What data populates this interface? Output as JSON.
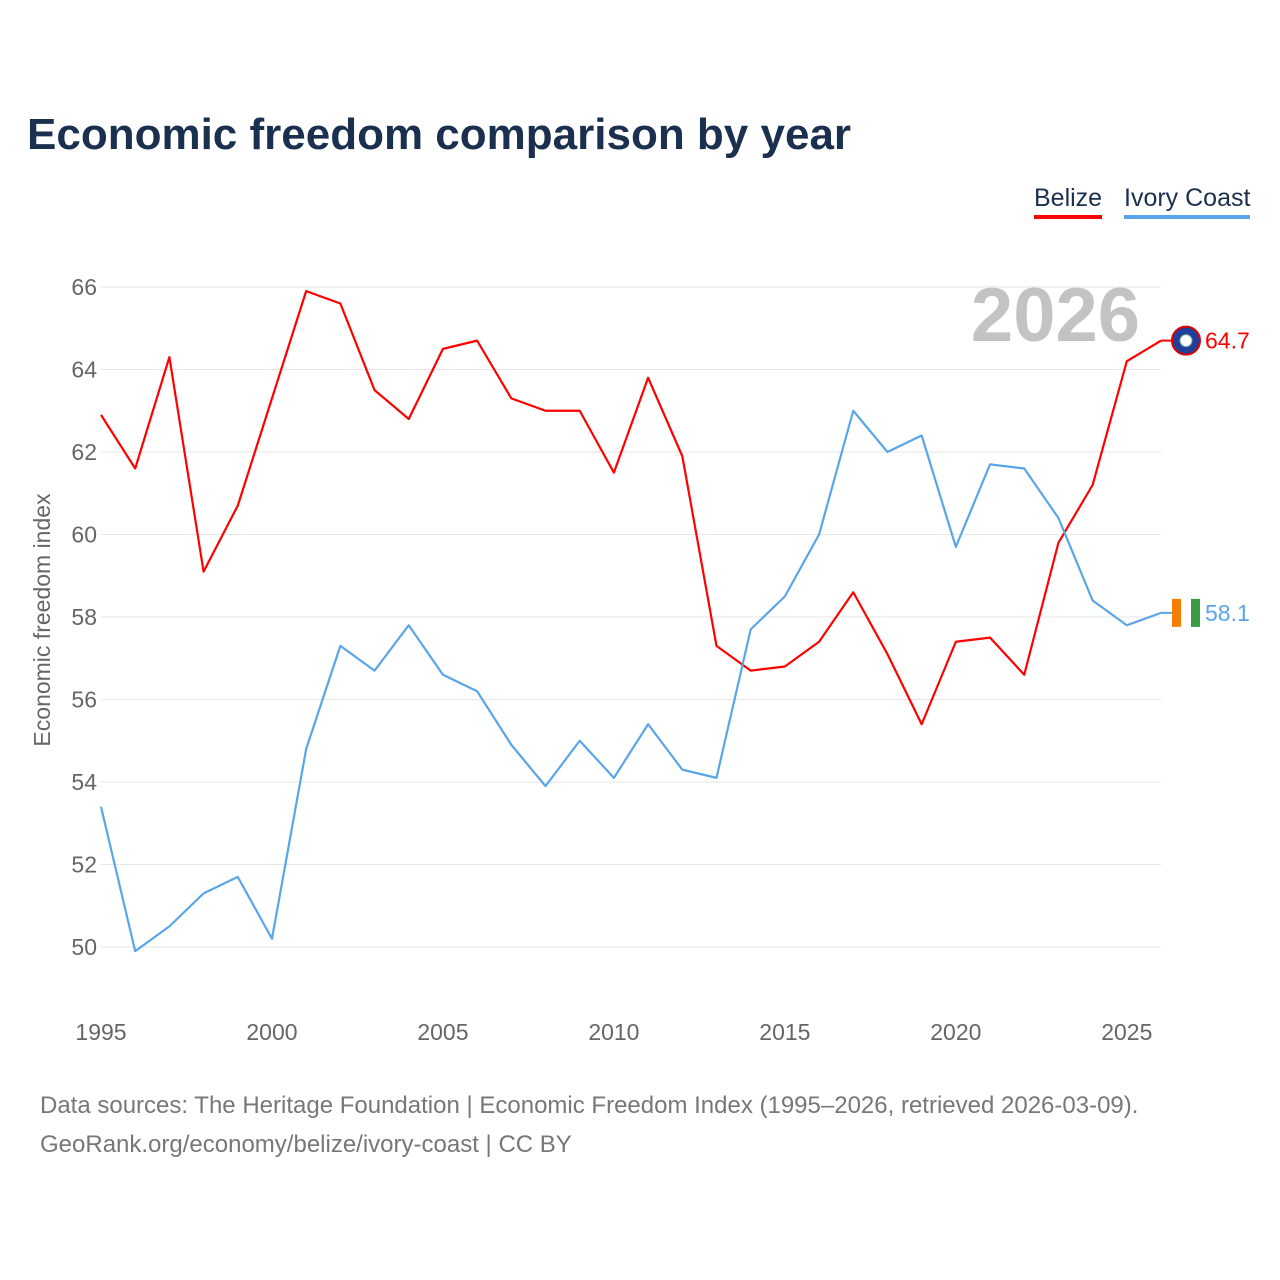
{
  "chart_data": {
    "type": "line",
    "title": "Economic freedom comparison by year",
    "xlabel": "",
    "ylabel": "Economic freedom index",
    "x": [
      1995,
      1996,
      1997,
      1998,
      1999,
      2000,
      2001,
      2002,
      2003,
      2004,
      2005,
      2006,
      2007,
      2008,
      2009,
      2010,
      2011,
      2012,
      2013,
      2014,
      2015,
      2016,
      2017,
      2018,
      2019,
      2020,
      2021,
      2022,
      2023,
      2024,
      2025,
      2026
    ],
    "series": [
      {
        "name": "Belize",
        "color": "#ff0000",
        "end_label": "64.7",
        "values": [
          62.9,
          61.6,
          64.3,
          59.1,
          60.7,
          63.3,
          65.9,
          65.6,
          63.5,
          62.8,
          64.5,
          64.7,
          63.3,
          63.0,
          63.0,
          61.5,
          63.8,
          61.9,
          57.3,
          56.7,
          56.8,
          57.4,
          58.6,
          57.1,
          55.4,
          57.4,
          57.5,
          56.6,
          59.8,
          61.2,
          64.2,
          64.7
        ]
      },
      {
        "name": "Ivory Coast",
        "color": "#5aa5ea",
        "end_label": "58.1",
        "values": [
          53.4,
          49.9,
          50.5,
          51.3,
          51.7,
          50.2,
          54.8,
          57.3,
          56.7,
          57.8,
          56.6,
          56.2,
          54.9,
          53.9,
          55.0,
          54.1,
          55.4,
          54.3,
          54.1,
          57.7,
          58.5,
          60.0,
          63.0,
          62.0,
          62.4,
          59.7,
          61.7,
          61.6,
          60.4,
          58.4,
          57.8,
          58.1
        ]
      }
    ],
    "xlim": [
      1995,
      2026
    ],
    "ylim": [
      50,
      66
    ],
    "yticks": [
      "50",
      "52",
      "54",
      "56",
      "58",
      "60",
      "62",
      "64",
      "66"
    ],
    "xticks": [
      "1995",
      "2000",
      "2005",
      "2010",
      "2015",
      "2020",
      "2025"
    ],
    "year_watermark": "2026",
    "grid": true,
    "legend_position": "top-right"
  },
  "footer": {
    "line1": "Data sources: The Heritage Foundation | Economic Freedom Index (1995–2026, retrieved 2026-03-09).",
    "line2": "GeoRank.org/economy/belize/ivory-coast | CC BY"
  }
}
